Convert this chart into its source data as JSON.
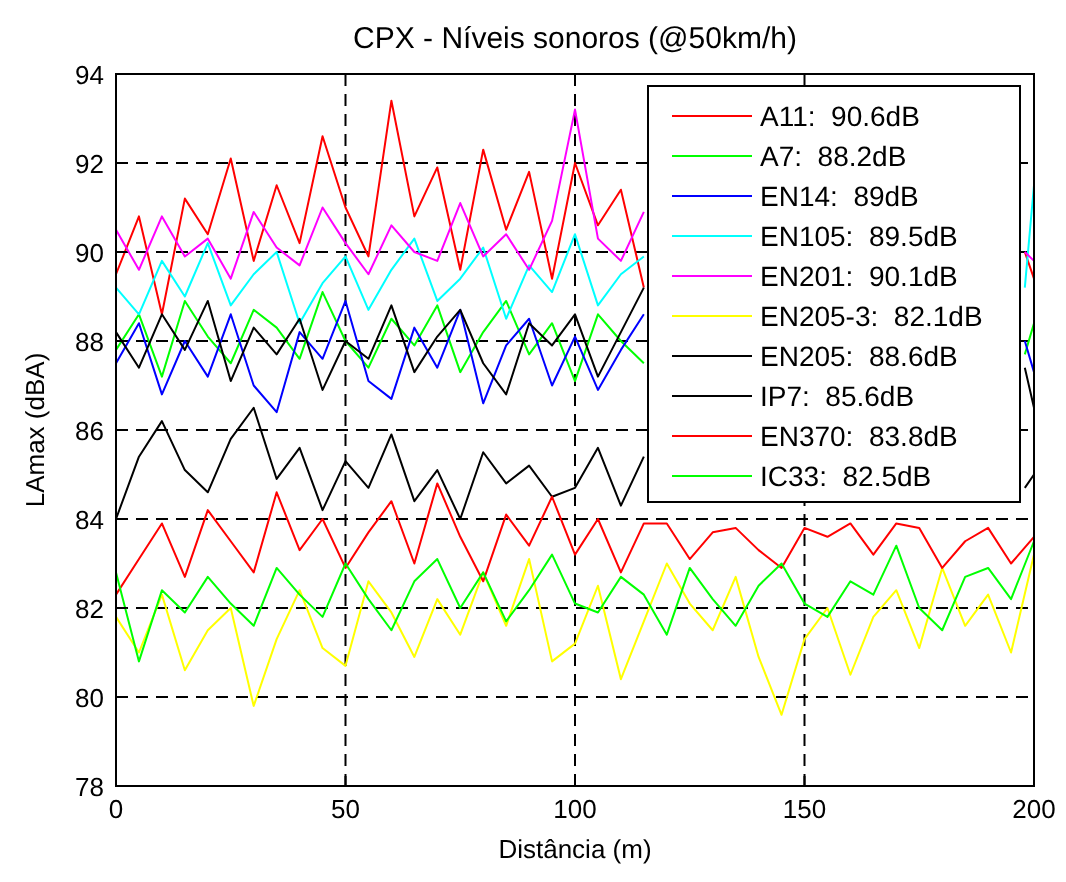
{
  "chart_data": {
    "type": "line",
    "title": "CPX - Níveis sonoros (@50km/h)",
    "xlabel": "Distância (m)",
    "ylabel": "LAmax (dBA)",
    "x": [
      0,
      5,
      10,
      15,
      20,
      25,
      30,
      35,
      40,
      45,
      50,
      55,
      60,
      65,
      70,
      75,
      80,
      85,
      90,
      95,
      100,
      105,
      110,
      115,
      120,
      125,
      130,
      135,
      140,
      145,
      150,
      155,
      160,
      165,
      170,
      175,
      180,
      185,
      190,
      195,
      200
    ],
    "xlim": [
      0,
      200
    ],
    "xticks": [
      0,
      50,
      100,
      150,
      200
    ],
    "ylim": [
      78,
      94
    ],
    "yticks": [
      78,
      80,
      82,
      84,
      86,
      88,
      90,
      92,
      94
    ],
    "grid": true,
    "legend": "top right",
    "marker": "none",
    "line_style": "solid",
    "series": [
      {
        "name": "A11:  90.6dB",
        "color": "#ff0000",
        "x": [
          0,
          5,
          10,
          15,
          20,
          25,
          30,
          35,
          40,
          45,
          50,
          55,
          60,
          65,
          70,
          75,
          80,
          85,
          90,
          95,
          100,
          105,
          110,
          115,
          150,
          198,
          200
        ],
        "values": [
          89.5,
          90.8,
          88.6,
          91.2,
          90.4,
          92.1,
          89.8,
          91.5,
          90.2,
          92.6,
          91.0,
          89.9,
          93.4,
          90.8,
          91.9,
          89.6,
          92.3,
          90.5,
          91.8,
          89.4,
          92.0,
          90.6,
          91.4,
          89.2,
          null,
          90.0,
          89.4
        ]
      },
      {
        "name": "A7:  88.2dB",
        "color": "#00ff00",
        "x": [
          0,
          5,
          10,
          15,
          20,
          25,
          30,
          35,
          40,
          45,
          50,
          55,
          60,
          65,
          70,
          75,
          80,
          85,
          90,
          95,
          100,
          105,
          110,
          115,
          150,
          198,
          200
        ],
        "values": [
          87.8,
          88.6,
          87.2,
          88.9,
          88.1,
          87.5,
          88.7,
          88.3,
          87.6,
          89.1,
          88.0,
          87.4,
          88.5,
          87.9,
          88.8,
          87.3,
          88.2,
          88.9,
          87.7,
          88.4,
          87.1,
          88.6,
          88.0,
          87.5,
          null,
          87.7,
          88.4
        ]
      },
      {
        "name": "EN14:  89dB",
        "color": "#0000ff",
        "x": [
          0,
          5,
          10,
          15,
          20,
          25,
          30,
          35,
          40,
          45,
          50,
          55,
          60,
          65,
          70,
          75,
          80,
          85,
          90,
          95,
          100,
          105,
          110,
          115,
          150,
          198,
          200
        ],
        "values": [
          87.5,
          88.4,
          86.8,
          88.0,
          87.2,
          88.6,
          87.0,
          86.4,
          88.2,
          87.6,
          88.9,
          87.1,
          86.7,
          88.3,
          87.4,
          88.7,
          86.6,
          87.9,
          88.5,
          87.0,
          88.1,
          86.9,
          87.8,
          88.6,
          null,
          88.0,
          87.3
        ]
      },
      {
        "name": "EN105:  89.5dB",
        "color": "#00ffff",
        "x": [
          0,
          5,
          10,
          15,
          20,
          25,
          30,
          35,
          40,
          45,
          50,
          55,
          60,
          65,
          70,
          75,
          80,
          85,
          90,
          95,
          100,
          105,
          110,
          115,
          150,
          198,
          200
        ],
        "values": [
          89.2,
          88.6,
          89.8,
          89.0,
          90.2,
          88.8,
          89.5,
          90.0,
          88.4,
          89.3,
          89.9,
          88.7,
          89.6,
          90.3,
          88.9,
          89.4,
          90.1,
          88.5,
          89.7,
          89.1,
          90.4,
          88.8,
          89.5,
          89.9,
          null,
          89.2,
          91.5
        ]
      },
      {
        "name": "EN201:  90.1dB",
        "color": "#ff00ff",
        "x": [
          0,
          5,
          10,
          15,
          20,
          25,
          30,
          35,
          40,
          45,
          50,
          55,
          60,
          65,
          70,
          75,
          80,
          85,
          90,
          95,
          100,
          105,
          110,
          115,
          150,
          198,
          200
        ],
        "values": [
          90.5,
          89.6,
          90.8,
          89.9,
          90.3,
          89.4,
          90.9,
          90.1,
          89.7,
          91.0,
          90.2,
          89.5,
          90.6,
          90.0,
          89.8,
          91.1,
          89.9,
          90.4,
          89.6,
          90.7,
          93.2,
          90.3,
          89.8,
          90.9,
          null,
          90.0,
          89.8
        ]
      },
      {
        "name": "EN205-3:  82.1dB",
        "color": "#ffff00",
        "values": [
          81.8,
          81.0,
          82.3,
          80.6,
          81.5,
          82.0,
          79.8,
          81.3,
          82.4,
          81.1,
          80.7,
          82.6,
          81.9,
          80.9,
          82.2,
          81.4,
          82.8,
          81.6,
          83.1,
          80.8,
          81.2,
          82.5,
          80.4,
          81.7,
          83.0,
          82.1,
          81.5,
          82.7,
          80.9,
          79.6,
          81.3,
          82.0,
          80.5,
          81.8,
          82.4,
          81.1,
          82.9,
          81.6,
          82.3,
          81.0,
          83.2
        ]
      },
      {
        "name": "EN205:  88.6dB",
        "color": "#000000",
        "x": [
          0,
          5,
          10,
          15,
          20,
          25,
          30,
          35,
          40,
          45,
          50,
          55,
          60,
          65,
          70,
          75,
          80,
          85,
          90,
          95,
          100,
          105,
          110,
          115,
          150,
          198,
          200
        ],
        "values": [
          88.2,
          87.4,
          88.6,
          87.8,
          88.9,
          87.1,
          88.3,
          87.7,
          88.5,
          86.9,
          88.0,
          87.6,
          88.8,
          87.3,
          88.1,
          88.7,
          87.5,
          86.8,
          88.4,
          87.9,
          88.6,
          87.2,
          88.2,
          89.2,
          null,
          87.4,
          86.5
        ]
      },
      {
        "name": "IP7:  85.6dB",
        "color": "#000000",
        "x": [
          0,
          5,
          10,
          15,
          20,
          25,
          30,
          35,
          40,
          45,
          50,
          55,
          60,
          65,
          70,
          75,
          80,
          85,
          90,
          95,
          100,
          105,
          110,
          115,
          150,
          198,
          200
        ],
        "values": [
          84.0,
          85.4,
          86.2,
          85.1,
          84.6,
          85.8,
          86.5,
          84.9,
          85.6,
          84.2,
          85.3,
          84.7,
          85.9,
          84.4,
          85.1,
          84.0,
          85.5,
          84.8,
          85.2,
          84.5,
          84.7,
          85.6,
          84.3,
          85.4,
          null,
          84.7,
          85.0
        ]
      },
      {
        "name": "EN370:  83.8dB",
        "color": "#ff0000",
        "values": [
          82.3,
          83.1,
          83.9,
          82.7,
          84.2,
          83.5,
          82.8,
          84.6,
          83.3,
          84.0,
          82.9,
          83.7,
          84.4,
          83.0,
          84.8,
          83.6,
          82.6,
          84.1,
          83.4,
          84.5,
          83.2,
          84.0,
          82.8,
          83.9,
          83.9,
          83.1,
          83.7,
          83.8,
          83.3,
          82.9,
          83.8,
          83.6,
          83.9,
          83.2,
          83.9,
          83.8,
          82.9,
          83.5,
          83.8,
          83.0,
          83.6
        ]
      },
      {
        "name": "IC33:  82.5dB",
        "color": "#00ff00",
        "values": [
          82.8,
          80.8,
          82.4,
          81.9,
          82.7,
          82.1,
          81.6,
          82.9,
          82.3,
          81.8,
          83.0,
          82.2,
          81.5,
          82.6,
          83.1,
          82.0,
          82.8,
          81.7,
          82.4,
          83.2,
          82.1,
          81.9,
          82.7,
          82.3,
          81.4,
          82.9,
          82.2,
          81.6,
          82.5,
          83.0,
          82.1,
          81.8,
          82.6,
          82.3,
          83.4,
          82.0,
          81.5,
          82.7,
          82.9,
          82.2,
          83.5
        ]
      }
    ]
  }
}
